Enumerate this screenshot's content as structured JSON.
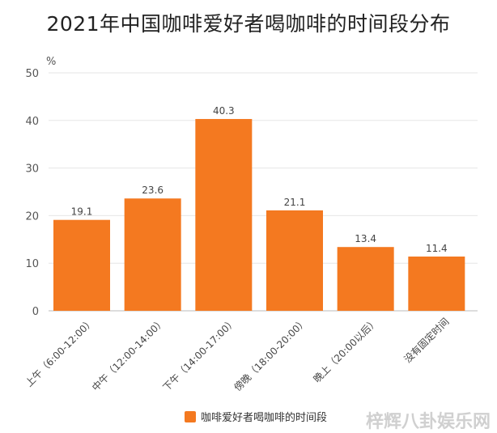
{
  "chart_data": {
    "type": "bar",
    "title": "2021年中国咖啡爱好者喝咖啡的时间段分布",
    "ylabel": "%",
    "xlabel": "",
    "ylim": [
      0,
      50
    ],
    "yticks": [
      0,
      10,
      20,
      30,
      40,
      50
    ],
    "grid": true,
    "legend_position": "bottom",
    "categories": [
      "上午（6:00-12:00）",
      "中午（12:00-14:00）",
      "下午（14:00-17:00）",
      "傍晚（18:00-20:00）",
      "晚上（20:00以后）",
      "没有固定时间"
    ],
    "series": [
      {
        "name": "咖啡爱好者喝咖啡的时间段",
        "values": [
          19.1,
          23.6,
          40.3,
          21.1,
          13.4,
          11.4
        ]
      }
    ],
    "bar_color": "#f47920"
  },
  "watermark": "梓辉八卦娱乐网"
}
